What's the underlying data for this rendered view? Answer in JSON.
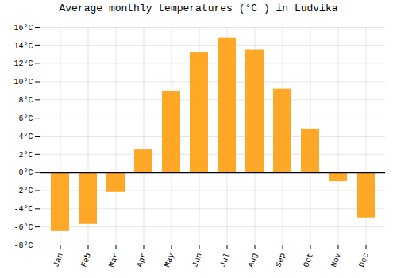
{
  "chart_data": {
    "type": "bar",
    "title": "Average monthly temperatures (°C ) in Ludvika",
    "categories": [
      "Jan",
      "Feb",
      "Mar",
      "Apr",
      "May",
      "Jun",
      "Jul",
      "Aug",
      "Sep",
      "Oct",
      "Nov",
      "Dec"
    ],
    "values": [
      -6.5,
      -5.7,
      -2.2,
      2.5,
      9.0,
      13.2,
      14.8,
      13.5,
      9.2,
      4.8,
      -1.0,
      -5.0
    ],
    "color": "#FFA726",
    "ylim": [
      -8,
      16
    ],
    "yticks": [
      {
        "value": -8,
        "label": "-8°C"
      },
      {
        "value": -6,
        "label": "-6°C"
      },
      {
        "value": -4,
        "label": "-4°C"
      },
      {
        "value": -2,
        "label": "-2°C"
      },
      {
        "value": 0,
        "label": "0°C"
      },
      {
        "value": 2,
        "label": "2°C"
      },
      {
        "value": 4,
        "label": "4°C"
      },
      {
        "value": 6,
        "label": "6°C"
      },
      {
        "value": 8,
        "label": "8°C"
      },
      {
        "value": 10,
        "label": "10°C"
      },
      {
        "value": 12,
        "label": "12°C"
      },
      {
        "value": 14,
        "label": "14°C"
      },
      {
        "value": 16,
        "label": "16°C"
      }
    ],
    "grid": true
  }
}
